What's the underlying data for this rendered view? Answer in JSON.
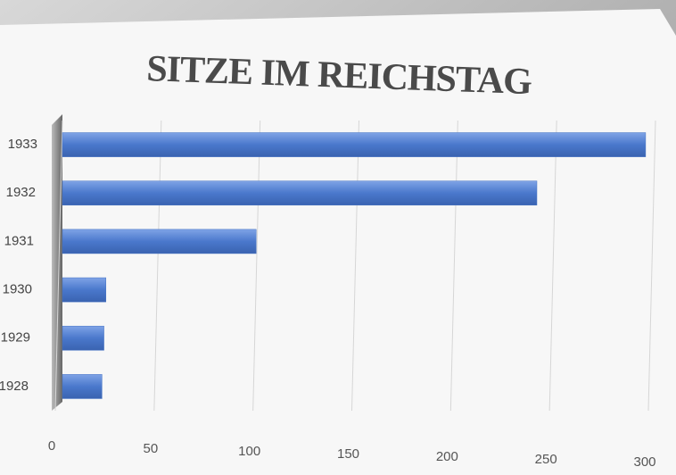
{
  "chart_data": {
    "type": "bar",
    "orientation": "horizontal",
    "title": "SITZE IM REICHSTAG",
    "categories": [
      "1933",
      "1932",
      "1931",
      "1930",
      "1929",
      "1928"
    ],
    "values": [
      295,
      240,
      98,
      22,
      21,
      20
    ],
    "color": "#4472c4",
    "xlim": [
      0,
      300
    ],
    "xticks": [
      0,
      50,
      100,
      150,
      200,
      250,
      300
    ],
    "grid": true
  }
}
